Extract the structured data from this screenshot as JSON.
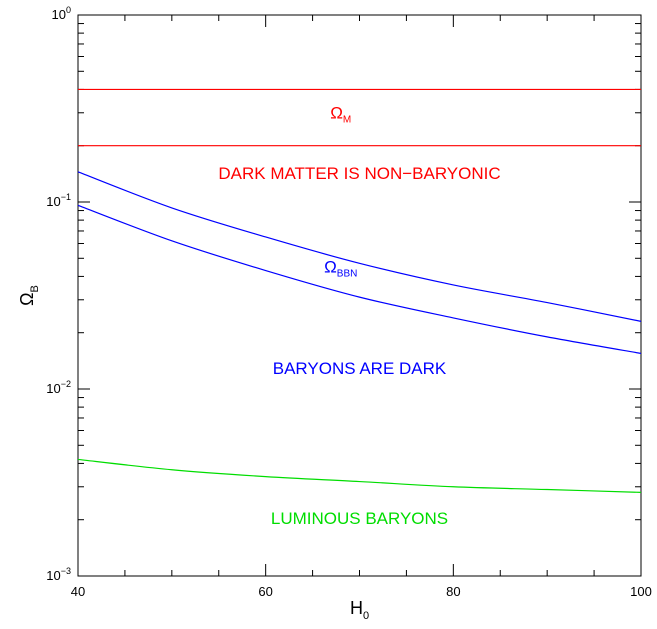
{
  "chart_data": {
    "type": "line",
    "x_scale": "linear",
    "y_scale": "log",
    "xlim": [
      40,
      100
    ],
    "ylim": [
      0.001,
      1
    ],
    "xticks": [
      {
        "value": 40,
        "label": "40"
      },
      {
        "value": 60,
        "label": "60"
      },
      {
        "value": 80,
        "label": "80"
      },
      {
        "value": 100,
        "label": "100"
      }
    ],
    "yticks": [
      {
        "value": 0.001,
        "base": "10",
        "exp": "−3"
      },
      {
        "value": 0.01,
        "base": "10",
        "exp": "−2"
      },
      {
        "value": 0.1,
        "base": "10",
        "exp": "−1"
      },
      {
        "value": 1,
        "base": "10",
        "exp": "0"
      }
    ],
    "xlabel": {
      "main": "H",
      "sub": "0"
    },
    "ylabel": {
      "main": "Ω",
      "sub": "B"
    },
    "grid": false,
    "series": [
      {
        "color": "#ff0000",
        "x": [
          40,
          100
        ],
        "y": [
          0.4,
          0.4
        ]
      },
      {
        "color": "#ff0000",
        "x": [
          40,
          100
        ],
        "y": [
          0.2,
          0.2
        ]
      },
      {
        "color": "#0000ff",
        "x": [
          40,
          50,
          60,
          70,
          80,
          90,
          100
        ],
        "y": [
          0.145,
          0.093,
          0.065,
          0.047,
          0.036,
          0.029,
          0.023
        ]
      },
      {
        "color": "#0000ff",
        "x": [
          40,
          50,
          60,
          70,
          80,
          90,
          100
        ],
        "y": [
          0.096,
          0.062,
          0.043,
          0.031,
          0.024,
          0.019,
          0.0155
        ]
      },
      {
        "color": "#00dd00",
        "x": [
          40,
          50,
          60,
          70,
          80,
          90,
          100
        ],
        "y": [
          0.0042,
          0.0037,
          0.0034,
          0.0032,
          0.003,
          0.0029,
          0.0028
        ]
      }
    ],
    "annotations": [
      {
        "text": "Ω",
        "sub": "M",
        "color": "#ff0000",
        "x": 68,
        "y": 0.28
      },
      {
        "text": "DARK MATTER IS NON−BARYONIC",
        "sub": "",
        "color": "#ff0000",
        "x": 70,
        "y": 0.133
      },
      {
        "text": "Ω",
        "sub": "BBN",
        "color": "#0000ff",
        "x": 68,
        "y": 0.042
      },
      {
        "text": "BARYONS  ARE  DARK",
        "sub": "",
        "color": "#0000ff",
        "x": 70,
        "y": 0.012
      },
      {
        "text": "LUMINOUS  BARYONS",
        "sub": "",
        "color": "#00dd00",
        "x": 70,
        "y": 0.0019
      }
    ]
  }
}
